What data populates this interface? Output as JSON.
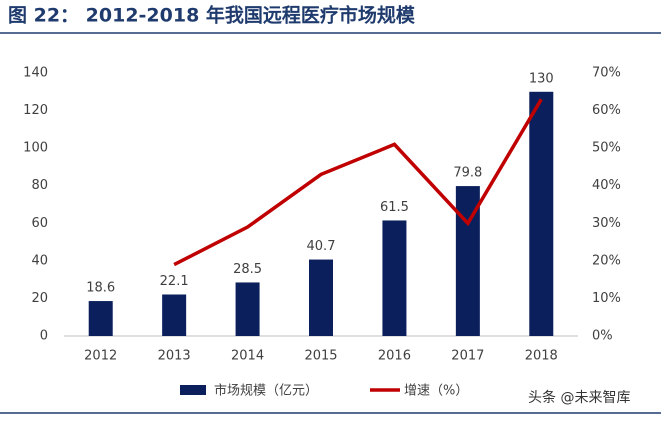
{
  "chart_data": {
    "type": "bar",
    "title": "图 22：  2012-2018 年我国远程医疗市场规模",
    "categories": [
      "2012",
      "2013",
      "2014",
      "2015",
      "2016",
      "2017",
      "2018"
    ],
    "series": [
      {
        "name": "市场规模（亿元）",
        "type": "bar",
        "color": "#0b1f5c",
        "values": [
          18.6,
          22.1,
          28.5,
          40.7,
          61.5,
          79.8,
          130
        ]
      },
      {
        "name": "增速（%）",
        "type": "line",
        "axis": "y2",
        "color": "#c00000",
        "values": [
          null,
          19,
          29,
          43,
          51,
          30,
          63
        ]
      }
    ],
    "ylim": [
      0,
      140
    ],
    "yticks": [
      0,
      20,
      40,
      60,
      80,
      100,
      120,
      140
    ],
    "y2lim": [
      0,
      70
    ],
    "y2ticks": [
      {
        "value": 0,
        "label": "0%"
      },
      {
        "value": 10,
        "label": "10%"
      },
      {
        "value": 20,
        "label": "20%"
      },
      {
        "value": 30,
        "label": "30%"
      },
      {
        "value": 40,
        "label": "40%"
      },
      {
        "value": 50,
        "label": "50%"
      },
      {
        "value": 60,
        "label": "60%"
      },
      {
        "value": 70,
        "label": "70%"
      }
    ],
    "grid": false,
    "watermark": "头条 @未来智库"
  }
}
